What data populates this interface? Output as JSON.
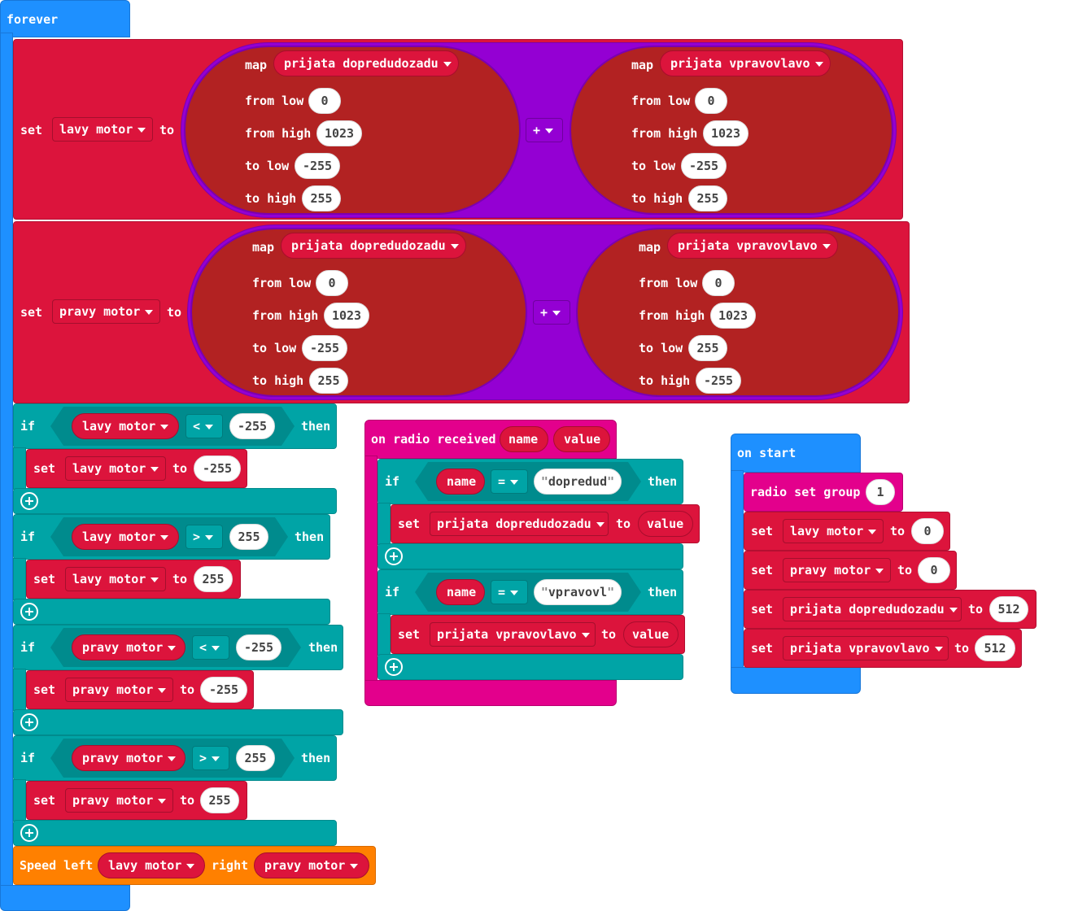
{
  "forever": {
    "hat": "forever",
    "set_kw": "set",
    "to_kw": "to",
    "map_kw": "map",
    "from_low_kw": "from low",
    "from_high_kw": "from high",
    "to_low_kw": "to low",
    "to_high_kw": "to high",
    "plus_op": "+",
    "set1": {
      "var": "lavy motor",
      "left_map": {
        "value": "prijata dopredudozadu",
        "from_low": "0",
        "from_high": "1023",
        "to_low": "-255",
        "to_high": "255"
      },
      "right_map": {
        "value": "prijata vpravovlavo",
        "from_low": "0",
        "from_high": "1023",
        "to_low": "-255",
        "to_high": "255"
      }
    },
    "set2": {
      "var": "pravy motor",
      "left_map": {
        "value": "prijata dopredudozadu",
        "from_low": "0",
        "from_high": "1023",
        "to_low": "-255",
        "to_high": "255"
      },
      "right_map": {
        "value": "prijata vpravovlavo",
        "from_low": "0",
        "from_high": "1023",
        "to_low": "255",
        "to_high": "-255"
      }
    },
    "if_kw": "if",
    "then_kw": "then",
    "ifs": [
      {
        "var": "lavy motor",
        "op": "<",
        "num": "-255",
        "set_var": "lavy motor",
        "set_val": "-255"
      },
      {
        "var": "lavy motor",
        "op": ">",
        "num": "255",
        "set_var": "lavy motor",
        "set_val": "255"
      },
      {
        "var": "pravy motor",
        "op": "<",
        "num": "-255",
        "set_var": "pravy motor",
        "set_val": "-255"
      },
      {
        "var": "pravy motor",
        "op": ">",
        "num": "255",
        "set_var": "pravy motor",
        "set_val": "255"
      }
    ],
    "speed": {
      "label": "Speed left",
      "left_var": "lavy motor",
      "right_kw": "right",
      "right_var": "pravy motor"
    }
  },
  "radio": {
    "hat": "on radio received",
    "param1": "name",
    "param2": "value",
    "if_kw": "if",
    "then_kw": "then",
    "set_kw": "set",
    "to_kw": "to",
    "ifs": [
      {
        "var": "name",
        "op": "=",
        "str": "dopredud",
        "set_var": "prijata dopredudozadu",
        "set_val": "value"
      },
      {
        "var": "name",
        "op": "=",
        "str": "vpravovl",
        "set_var": "prijata vpravovlavo",
        "set_val": "value"
      }
    ]
  },
  "on_start": {
    "hat": "on start",
    "radio_group": "radio set group",
    "group_val": "1",
    "set_kw": "set",
    "to_kw": "to",
    "sets": [
      {
        "var": "lavy motor",
        "val": "0"
      },
      {
        "var": "pravy motor",
        "val": "0"
      },
      {
        "var": "prijata dopredudozadu",
        "val": "512"
      },
      {
        "var": "prijata vpravovlavo",
        "val": "512"
      }
    ]
  },
  "colors": {
    "loops": "#1e90ff",
    "variables": "#dc143c",
    "logic": "#00a4a6",
    "math": "#9400d3",
    "radio": "#e3008c",
    "custom": "#ff8000"
  }
}
